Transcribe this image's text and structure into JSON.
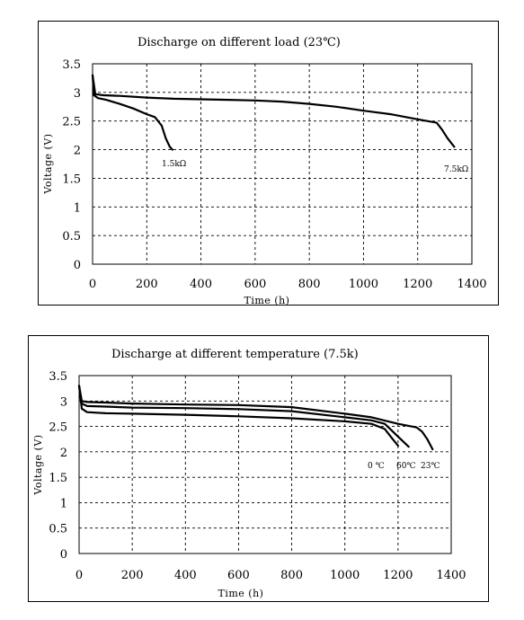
{
  "chart_data": [
    {
      "type": "line",
      "title": "Discharge on different load (23℃)",
      "xlabel": "Time (h)",
      "ylabel": "Voltage (V)",
      "xlim": [
        0,
        1400
      ],
      "ylim": [
        0,
        3.5
      ],
      "x_ticks": [
        "0",
        "200",
        "400",
        "600",
        "800",
        "1000",
        "1200",
        "1400"
      ],
      "y_ticks": [
        "0",
        "0.5",
        "1",
        "1.5",
        "2",
        "2.5",
        "3",
        "3.5"
      ],
      "grid": true,
      "series": [
        {
          "name": "1.5kΩ",
          "x": [
            0,
            5,
            20,
            50,
            100,
            150,
            200,
            230,
            255,
            270,
            285,
            295
          ],
          "y": [
            3.3,
            2.95,
            2.9,
            2.87,
            2.8,
            2.72,
            2.62,
            2.57,
            2.42,
            2.2,
            2.05,
            2.0
          ]
        },
        {
          "name": "7.5kΩ",
          "x": [
            0,
            10,
            40,
            100,
            200,
            300,
            400,
            500,
            600,
            700,
            800,
            900,
            1000,
            1100,
            1200,
            1270,
            1290,
            1310,
            1335
          ],
          "y": [
            3.3,
            2.97,
            2.95,
            2.94,
            2.91,
            2.89,
            2.88,
            2.87,
            2.86,
            2.84,
            2.8,
            2.75,
            2.68,
            2.62,
            2.53,
            2.47,
            2.35,
            2.2,
            2.05
          ]
        }
      ],
      "annotations": [
        "1.5kΩ",
        "7.5kΩ"
      ]
    },
    {
      "type": "line",
      "title": "Discharge at different temperature (7.5k)",
      "xlabel": "Time (h)",
      "ylabel": "Voltage (V)",
      "xlim": [
        0,
        1400
      ],
      "ylim": [
        0,
        3.5
      ],
      "x_ticks": [
        "0",
        "200",
        "400",
        "600",
        "800",
        "1000",
        "1200",
        "1400"
      ],
      "y_ticks": [
        "0",
        "0.5",
        "1",
        "1.5",
        "2",
        "2.5",
        "3",
        "3.5"
      ],
      "grid": true,
      "series": [
        {
          "name": "0 ℃",
          "x": [
            0,
            10,
            30,
            100,
            200,
            400,
            600,
            800,
            1000,
            1100,
            1150,
            1180,
            1200
          ],
          "y": [
            3.3,
            2.85,
            2.78,
            2.76,
            2.75,
            2.73,
            2.7,
            2.66,
            2.6,
            2.55,
            2.45,
            2.25,
            2.12
          ]
        },
        {
          "name": "60℃",
          "x": [
            0,
            10,
            30,
            100,
            200,
            400,
            600,
            800,
            1000,
            1100,
            1150,
            1200,
            1240
          ],
          "y": [
            3.3,
            2.95,
            2.9,
            2.89,
            2.87,
            2.86,
            2.84,
            2.8,
            2.68,
            2.62,
            2.55,
            2.3,
            2.1
          ]
        },
        {
          "name": "23℃",
          "x": [
            0,
            10,
            30,
            100,
            200,
            400,
            600,
            800,
            1000,
            1100,
            1200,
            1270,
            1290,
            1310,
            1330
          ],
          "y": [
            3.3,
            3.0,
            2.98,
            2.97,
            2.95,
            2.93,
            2.92,
            2.88,
            2.75,
            2.68,
            2.55,
            2.48,
            2.4,
            2.25,
            2.05
          ]
        }
      ],
      "annotations": [
        "0 ℃",
        "60℃",
        "23℃"
      ]
    }
  ]
}
